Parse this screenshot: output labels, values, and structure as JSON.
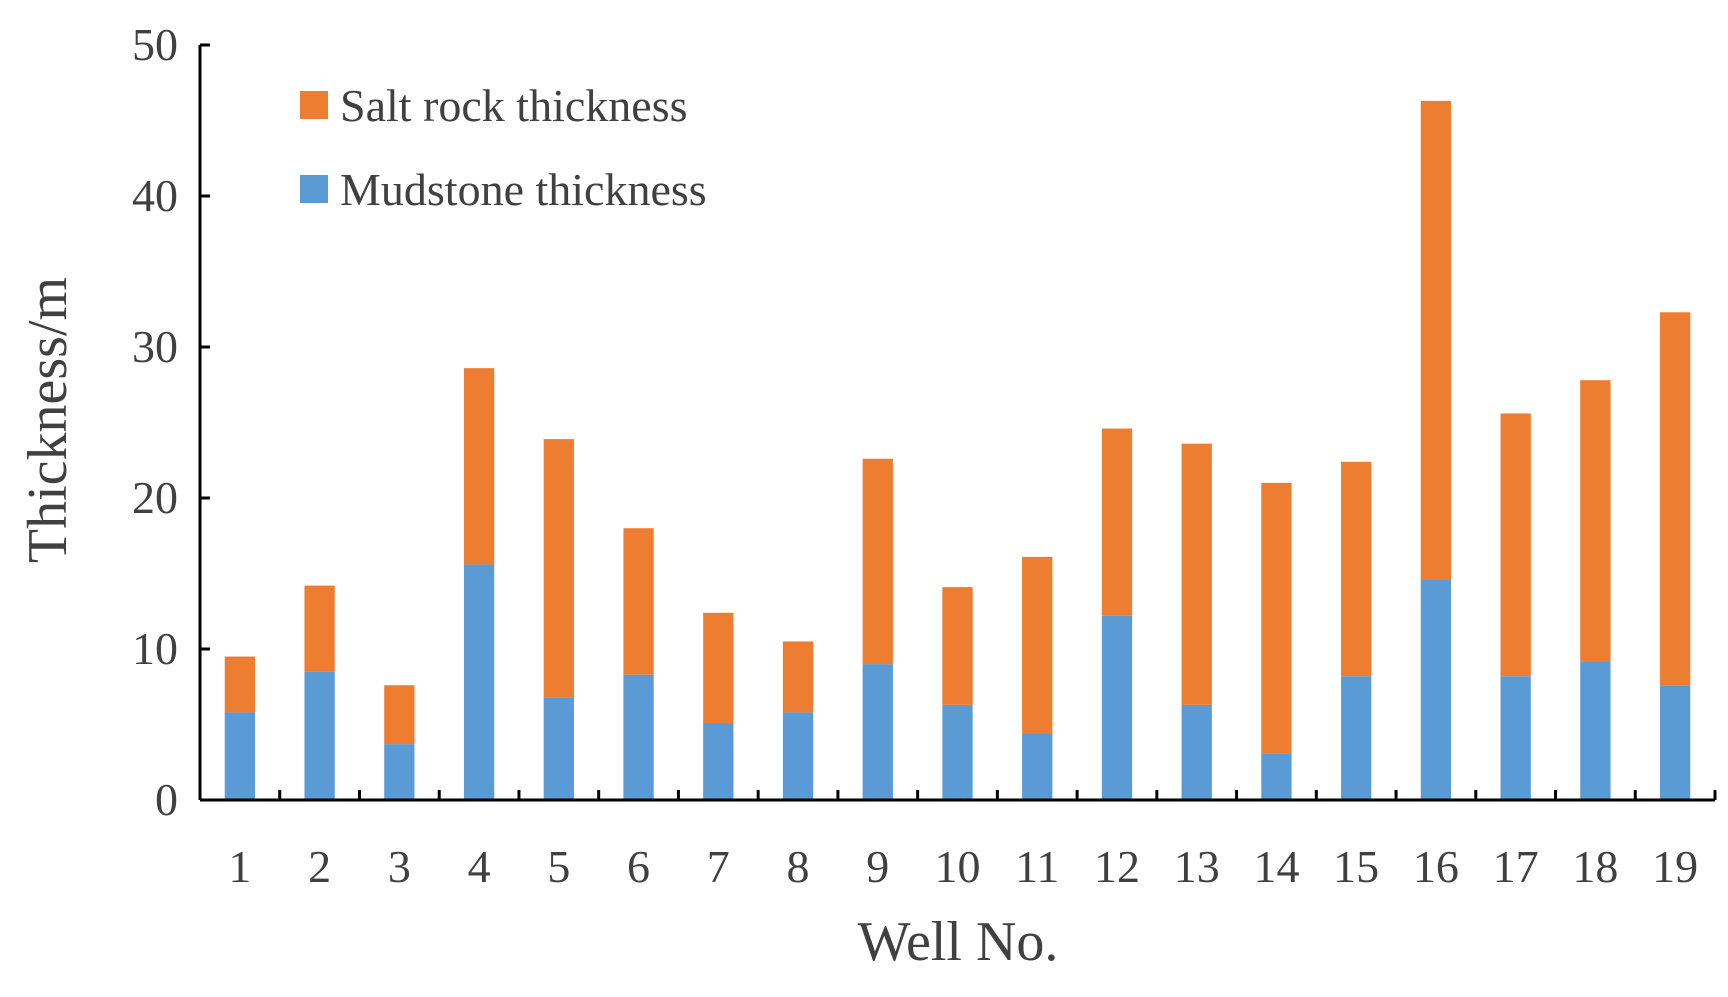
{
  "chart_data": {
    "type": "bar",
    "stacked": true,
    "title": "",
    "xlabel": "Well No.",
    "ylabel": "Thickness/m",
    "ylim": [
      0,
      50
    ],
    "yticks": [
      0,
      10,
      20,
      30,
      40,
      50
    ],
    "grid": false,
    "legend_position": "top-left",
    "categories": [
      "1",
      "2",
      "3",
      "4",
      "5",
      "6",
      "7",
      "8",
      "9",
      "10",
      "11",
      "12",
      "13",
      "14",
      "15",
      "16",
      "17",
      "18",
      "19"
    ],
    "series": [
      {
        "name": "Mudstone thickness",
        "color": "#5B9BD5",
        "values": [
          5.8,
          8.5,
          3.7,
          15.6,
          6.8,
          8.3,
          5.1,
          5.8,
          9.0,
          6.3,
          4.4,
          12.2,
          6.3,
          3.1,
          8.2,
          14.6,
          8.2,
          9.2,
          7.6
        ]
      },
      {
        "name": "Salt rock thickness",
        "color": "#ED7D31",
        "values": [
          3.7,
          5.7,
          3.9,
          13.0,
          17.1,
          9.7,
          7.3,
          4.7,
          13.6,
          7.8,
          11.7,
          12.4,
          17.3,
          17.9,
          14.2,
          31.7,
          17.4,
          18.6,
          24.7
        ]
      }
    ],
    "legend": [
      {
        "label": "Salt rock thickness",
        "color": "#ED7D31"
      },
      {
        "label": "Mudstone thickness",
        "color": "#5B9BD5"
      }
    ]
  }
}
